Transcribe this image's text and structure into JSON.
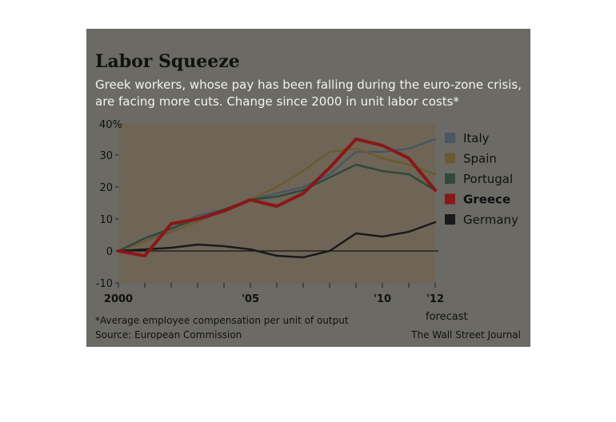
{
  "colors": {
    "card_bg": "#6b6a65",
    "plot_bg": "#6e6556",
    "zero_line": "#000000"
  },
  "chart_data": {
    "type": "line",
    "title": "Labor Squeeze",
    "subtitle_lines": [
      "Greek workers, whose pay has been falling during the euro-zone crisis,",
      "are facing more cuts. Change since 2000 in unit labor costs*"
    ],
    "y_unit_label": "40%",
    "ylim": [
      -10,
      40
    ],
    "yticks": [
      -10,
      0,
      10,
      20,
      30
    ],
    "xlim": [
      2000,
      2012
    ],
    "x_tick_labels": [
      {
        "x": 2000,
        "label": "2000"
      },
      {
        "x": 2005,
        "label": "'05"
      },
      {
        "x": 2010,
        "label": "'10"
      },
      {
        "x": 2012,
        "label": "'12"
      }
    ],
    "x_sub_label": "forecast",
    "footnote": "*Average employee compensation per unit of output",
    "source": "Source: European Commission",
    "credit": "The Wall Street Journal",
    "series": [
      {
        "name": "Italy",
        "color": "#4a5662",
        "x": [
          2000,
          2001,
          2002,
          2003,
          2004,
          2005,
          2006,
          2007,
          2008,
          2009,
          2010,
          2011,
          2012
        ],
        "y": [
          0,
          3,
          7,
          11,
          13,
          16,
          18,
          20,
          24,
          31,
          31,
          32,
          35
        ]
      },
      {
        "name": "Spain",
        "color": "#6b5a32",
        "x": [
          2000,
          2001,
          2002,
          2003,
          2004,
          2005,
          2006,
          2007,
          2008,
          2009,
          2010,
          2011,
          2012
        ],
        "y": [
          0,
          3,
          6,
          9,
          13,
          16,
          20,
          25,
          31,
          32,
          29,
          27,
          24
        ]
      },
      {
        "name": "Portugal",
        "color": "#2f4a3c",
        "x": [
          2000,
          2001,
          2002,
          2003,
          2004,
          2005,
          2006,
          2007,
          2008,
          2009,
          2010,
          2011,
          2012
        ],
        "y": [
          0,
          4,
          7,
          10,
          13,
          16,
          17,
          19,
          23,
          27,
          25,
          24,
          19
        ]
      },
      {
        "name": "Greece",
        "color": "#8a1717",
        "bold": true,
        "x": [
          2000,
          2001,
          2002,
          2003,
          2004,
          2005,
          2006,
          2007,
          2008,
          2009,
          2010,
          2011,
          2012
        ],
        "y": [
          0,
          -1.5,
          8.5,
          10,
          12.5,
          16,
          14,
          18,
          26,
          35,
          33,
          29,
          19
        ]
      },
      {
        "name": "Germany",
        "color": "#1a1a1a",
        "x": [
          2000,
          2001,
          2002,
          2003,
          2004,
          2005,
          2006,
          2007,
          2008,
          2009,
          2010,
          2011,
          2012
        ],
        "y": [
          0,
          0.5,
          1,
          2,
          1.5,
          0.5,
          -1.5,
          -2,
          0,
          5.5,
          4.5,
          6,
          9
        ]
      }
    ]
  }
}
